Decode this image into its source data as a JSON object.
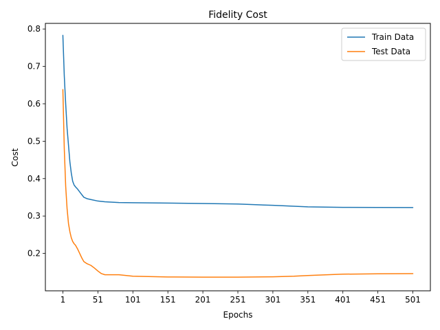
{
  "chart_data": {
    "type": "line",
    "title": "Fidelity Cost",
    "xlabel": "Epochs",
    "ylabel": "Cost",
    "xlim": [
      -24,
      526
    ],
    "ylim": [
      0.1,
      0.815
    ],
    "x_ticks": [
      1,
      51,
      101,
      151,
      201,
      251,
      301,
      351,
      401,
      451,
      501
    ],
    "y_ticks": [
      0.2,
      0.3,
      0.4,
      0.5,
      0.6,
      0.7,
      0.8
    ],
    "y_tick_labels": [
      "0.2",
      "0.3",
      "0.4",
      "0.5",
      "0.6",
      "0.7",
      "0.8"
    ],
    "grid": false,
    "legend_position": "top-right",
    "series": [
      {
        "name": "Train Data",
        "color": "#1f77b4",
        "x": [
          1,
          3,
          5,
          7,
          9,
          11,
          13,
          15,
          17,
          19,
          22,
          26,
          31,
          36,
          41,
          51,
          61,
          81,
          101,
          151,
          201,
          251,
          301,
          351,
          401,
          451,
          501
        ],
        "y": [
          0.783,
          0.675,
          0.6,
          0.535,
          0.49,
          0.445,
          0.415,
          0.393,
          0.383,
          0.378,
          0.372,
          0.362,
          0.35,
          0.346,
          0.344,
          0.34,
          0.338,
          0.336,
          0.3355,
          0.3345,
          0.3335,
          0.332,
          0.3285,
          0.3245,
          0.3232,
          0.3228,
          0.3226
        ]
      },
      {
        "name": "Test Data",
        "color": "#ff7f0e",
        "x": [
          1,
          3,
          5,
          7,
          9,
          11,
          13,
          15,
          17,
          19,
          22,
          25,
          28,
          31,
          35,
          41,
          46,
          51,
          56,
          61,
          71,
          81,
          101,
          151,
          201,
          251,
          301,
          331,
          351,
          401,
          451,
          501
        ],
        "y": [
          0.638,
          0.48,
          0.38,
          0.32,
          0.28,
          0.258,
          0.242,
          0.232,
          0.226,
          0.222,
          0.212,
          0.2,
          0.188,
          0.178,
          0.173,
          0.168,
          0.161,
          0.153,
          0.146,
          0.143,
          0.143,
          0.143,
          0.139,
          0.137,
          0.1365,
          0.1365,
          0.1375,
          0.139,
          0.141,
          0.1445,
          0.1455,
          0.146
        ]
      }
    ]
  }
}
